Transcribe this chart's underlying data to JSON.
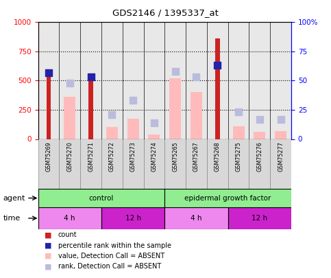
{
  "title": "GDS2146 / 1395337_at",
  "samples": [
    "GSM75269",
    "GSM75270",
    "GSM75271",
    "GSM75272",
    "GSM75273",
    "GSM75274",
    "GSM75265",
    "GSM75267",
    "GSM75268",
    "GSM75275",
    "GSM75276",
    "GSM75277"
  ],
  "ylim_left": [
    0,
    1000
  ],
  "ylim_right": [
    0,
    100
  ],
  "yticks_left": [
    0,
    250,
    500,
    750,
    1000
  ],
  "yticks_right": [
    0,
    25,
    50,
    75,
    100
  ],
  "red_bars": [
    560,
    0,
    510,
    0,
    0,
    0,
    0,
    0,
    860,
    0,
    0,
    0
  ],
  "pink_bars": [
    0,
    360,
    0,
    100,
    175,
    40,
    520,
    400,
    0,
    110,
    60,
    65
  ],
  "blue_squares": [
    57,
    0,
    53,
    0,
    0,
    0,
    0,
    0,
    63,
    0,
    0,
    0
  ],
  "lavender_squares": [
    0,
    48,
    0,
    21,
    33,
    14,
    58,
    53,
    0,
    23,
    17,
    17
  ],
  "agent_labels": [
    "control",
    "epidermal growth factor"
  ],
  "agent_col_spans": [
    6,
    6
  ],
  "agent_color": "#90ee90",
  "time_labels": [
    "4 h",
    "12 h",
    "4 h",
    "12 h"
  ],
  "time_col_spans": [
    3,
    3,
    3,
    3
  ],
  "time_colors": [
    "#ee88ee",
    "#cc22cc",
    "#ee88ee",
    "#cc22cc"
  ],
  "legend_items": [
    {
      "label": "count",
      "color": "#cc2222"
    },
    {
      "label": "percentile rank within the sample",
      "color": "#2222aa"
    },
    {
      "label": "value, Detection Call = ABSENT",
      "color": "#ffbbbb"
    },
    {
      "label": "rank, Detection Call = ABSENT",
      "color": "#bbbbdd"
    }
  ],
  "bg_color": "#ffffff",
  "plot_bg": "#e8e8e8",
  "red_color": "#cc2222",
  "blue_color": "#2222aa",
  "pink_color": "#ffbbbb",
  "lavender_color": "#bbbbdd",
  "cell_bg": "#d8d8d8",
  "cell_edge": "#888888"
}
